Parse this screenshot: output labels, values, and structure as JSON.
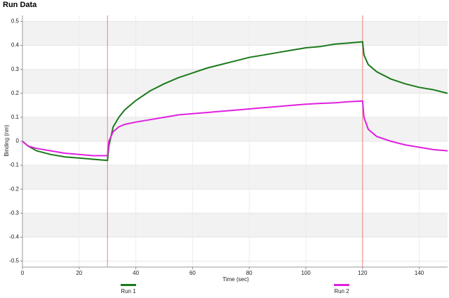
{
  "chart_data": {
    "type": "line",
    "title": "Run Data",
    "xlabel": "Time (sec)",
    "ylabel": "Binding (nm)",
    "x": [
      0,
      2,
      5,
      10,
      15,
      20,
      25,
      30,
      30.5,
      32,
      34,
      36,
      40,
      45,
      50,
      55,
      60,
      65,
      70,
      75,
      80,
      85,
      90,
      95,
      100,
      105,
      110,
      115,
      120,
      120.5,
      122,
      125,
      130,
      135,
      140,
      145,
      150
    ],
    "series": [
      {
        "name": "Run 1",
        "color": "#1a7a1a",
        "values": [
          0,
          -0.02,
          -0.04,
          -0.055,
          -0.065,
          -0.07,
          -0.075,
          -0.08,
          -0.02,
          0.06,
          0.1,
          0.13,
          0.17,
          0.21,
          0.24,
          0.265,
          0.285,
          0.305,
          0.32,
          0.335,
          0.35,
          0.36,
          0.37,
          0.38,
          0.39,
          0.395,
          0.405,
          0.41,
          0.415,
          0.36,
          0.32,
          0.29,
          0.26,
          0.24,
          0.225,
          0.215,
          0.2
        ]
      },
      {
        "name": "Run 2",
        "color": "#e020e0",
        "values": [
          0,
          -0.02,
          -0.03,
          -0.04,
          -0.05,
          -0.055,
          -0.06,
          -0.06,
          0.0,
          0.04,
          0.06,
          0.07,
          0.08,
          0.09,
          0.1,
          0.11,
          0.115,
          0.12,
          0.125,
          0.13,
          0.135,
          0.14,
          0.145,
          0.15,
          0.155,
          0.158,
          0.16,
          0.165,
          0.168,
          0.1,
          0.05,
          0.02,
          0.0,
          -0.015,
          -0.025,
          -0.035,
          -0.04
        ]
      }
    ],
    "vlines": [
      30,
      120
    ],
    "vline_color": "#f08080",
    "xlim": [
      0,
      150
    ],
    "xticks": [
      0,
      20,
      40,
      60,
      80,
      100,
      120,
      140
    ],
    "ylim": [
      -0.525,
      0.525
    ],
    "yticks": [
      -0.5,
      -0.4,
      -0.3,
      -0.2,
      -0.1,
      0,
      0.1,
      0.2,
      0.3,
      0.4,
      0.5
    ],
    "grid": true
  }
}
